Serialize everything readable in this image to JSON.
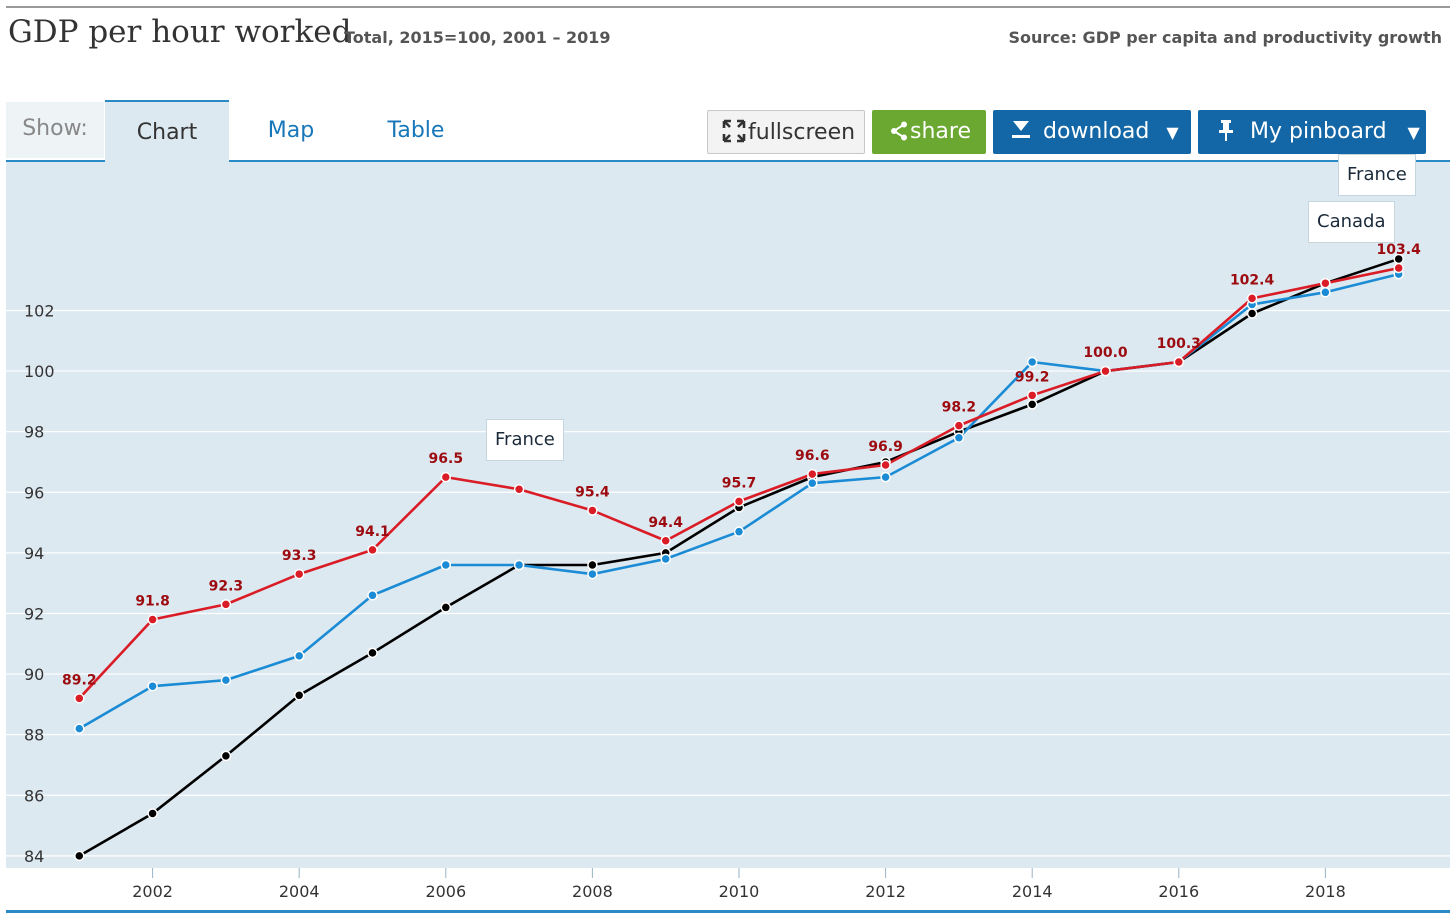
{
  "header": {
    "title": "GDP per hour worked",
    "subtitle": "Total, 2015=100, 2001 – 2019",
    "source": "Source: GDP per capita and productivity growth"
  },
  "tabs": {
    "show_label": "Show:",
    "items": [
      {
        "label": "Chart",
        "active": true
      },
      {
        "label": "Map",
        "active": false
      },
      {
        "label": "Table",
        "active": false
      }
    ]
  },
  "toolbar": {
    "fullscreen_label": "fullscreen",
    "share_label": "share",
    "download_label": "download",
    "pinboard_label": "My pinboard",
    "caret": "▼"
  },
  "tooltips": {
    "france_mid": "France",
    "france_top": "France",
    "canada_top": "Canada"
  },
  "chart_data": {
    "type": "line",
    "x": [
      2001,
      2002,
      2003,
      2004,
      2005,
      2006,
      2007,
      2008,
      2009,
      2010,
      2011,
      2012,
      2013,
      2014,
      2015,
      2016,
      2017,
      2018,
      2019
    ],
    "xticks": [
      2002,
      2004,
      2006,
      2008,
      2010,
      2012,
      2014,
      2016,
      2018
    ],
    "yticks": [
      84,
      86,
      88,
      90,
      92,
      94,
      96,
      98,
      100,
      102
    ],
    "xlim": [
      2000,
      2019.7
    ],
    "ylim": [
      83.6,
      106.9
    ],
    "grid": true,
    "series": [
      {
        "name": "",
        "color": "#000000",
        "values": [
          84.0,
          85.4,
          87.3,
          89.3,
          90.7,
          92.2,
          93.6,
          93.6,
          94.0,
          95.5,
          96.5,
          97.0,
          98.0,
          98.9,
          100.0,
          100.3,
          101.9,
          102.9,
          103.7
        ]
      },
      {
        "name": "Canada",
        "color": "#1a8bd4",
        "values": [
          88.2,
          89.6,
          89.8,
          90.6,
          92.6,
          93.6,
          93.6,
          93.3,
          93.8,
          94.7,
          96.3,
          96.5,
          97.8,
          100.3,
          100.0,
          100.3,
          102.2,
          102.6,
          103.2
        ]
      },
      {
        "name": "France",
        "color": "#d91c25",
        "label_color": "#9c0b10",
        "labeled": true,
        "values": [
          89.2,
          91.8,
          92.3,
          93.3,
          94.1,
          96.5,
          96.1,
          95.4,
          94.4,
          95.7,
          96.6,
          96.9,
          98.2,
          99.2,
          100.0,
          100.3,
          102.4,
          102.9,
          103.4
        ]
      }
    ]
  }
}
